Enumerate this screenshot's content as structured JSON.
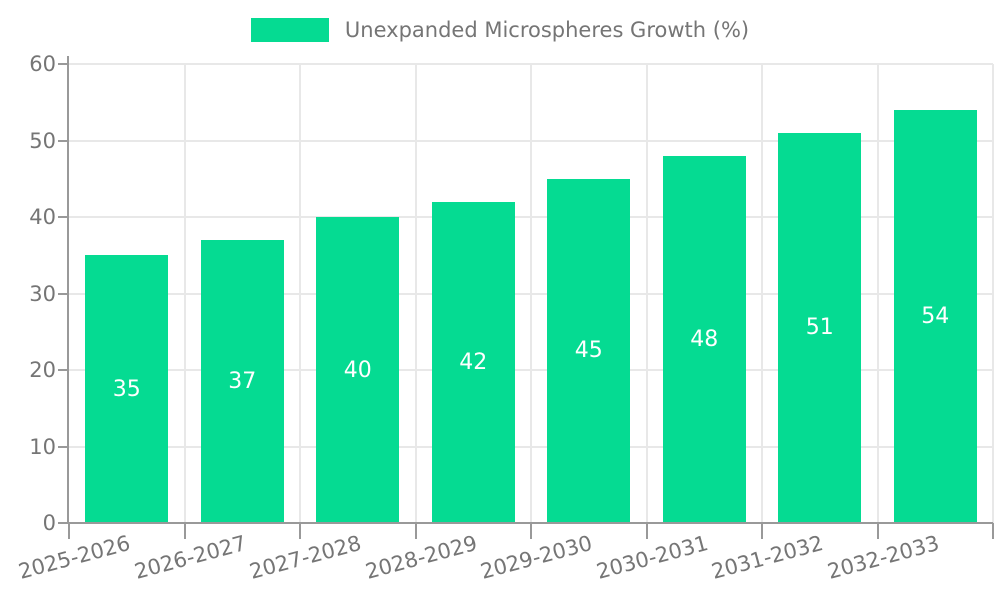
{
  "chart_data": {
    "type": "bar",
    "title": "",
    "legend_label": "Unexpanded Microspheres Growth (%)",
    "legend_position": "top-center",
    "categories": [
      "2025-2026",
      "2026-2027",
      "2027-2028",
      "2028-2029",
      "2029-2030",
      "2030-2031",
      "2031-2032",
      "2032-2033"
    ],
    "values": [
      35,
      37,
      40,
      42,
      45,
      48,
      51,
      54
    ],
    "value_labels": [
      "35",
      "37",
      "40",
      "42",
      "45",
      "48",
      "51",
      "54"
    ],
    "xlabel": "",
    "ylabel": "",
    "ylim": [
      0,
      60
    ],
    "yticks": [
      0,
      10,
      20,
      30,
      40,
      50,
      60
    ],
    "grid": true,
    "x_label_rotation_deg": -15,
    "colors": {
      "bar": "#05db92",
      "axis": "#999999",
      "gridline": "#e8e8e8",
      "tick_text": "#757575",
      "value_label_text": "#ffffff",
      "background": "#ffffff"
    }
  }
}
